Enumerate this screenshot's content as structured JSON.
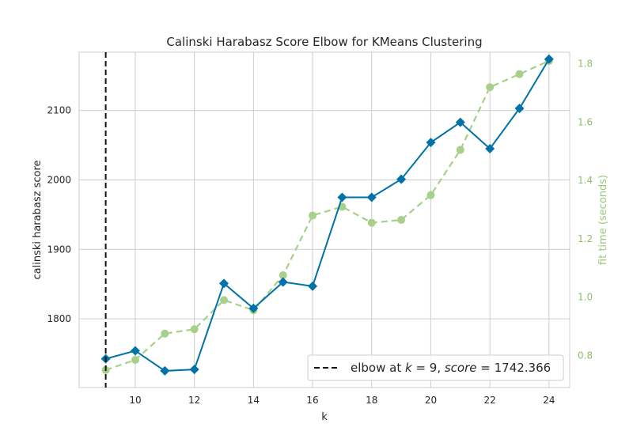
{
  "chart_data": {
    "type": "line",
    "title": "Calinski Harabasz Score Elbow for KMeans Clustering",
    "xlabel": "k",
    "ylabel": "calinski harabasz score",
    "y2label": "fit time (seconds)",
    "xlim": [
      8.1,
      24.7
    ],
    "ylim": [
      1701,
      2184
    ],
    "y2lim": [
      0.69,
      1.84
    ],
    "x_ticks": [
      10,
      12,
      14,
      16,
      18,
      20,
      22,
      24
    ],
    "y_ticks": [
      1800,
      1900,
      2000,
      2100
    ],
    "y2_ticks": [
      0.8,
      1.0,
      1.2,
      1.4,
      1.6,
      1.8
    ],
    "y2_tick_labels": [
      "0.8",
      "1.0",
      "1.2",
      "1.4",
      "1.6",
      "1.8"
    ],
    "grid": true,
    "series": [
      {
        "name": "calinski harabasz score",
        "axis": "left",
        "color": "#0072a8",
        "marker": "diamond",
        "linestyle": "solid",
        "x": [
          9,
          10,
          11,
          12,
          13,
          14,
          15,
          16,
          17,
          18,
          19,
          20,
          21,
          22,
          23,
          24
        ],
        "values": [
          1742.4,
          1754,
          1725,
          1727,
          1851,
          1815,
          1853,
          1847,
          1975,
          1975,
          2001,
          2054,
          2083,
          2045,
          2103,
          2174
        ]
      },
      {
        "name": "fit time (seconds)",
        "axis": "right",
        "color": "#a8d08a",
        "marker": "circle",
        "linestyle": "dashed",
        "x": [
          9,
          10,
          11,
          12,
          13,
          14,
          15,
          16,
          17,
          18,
          19,
          20,
          21,
          22,
          23,
          24
        ],
        "values": [
          0.75,
          0.785,
          0.875,
          0.89,
          0.99,
          0.955,
          1.075,
          1.28,
          1.31,
          1.255,
          1.265,
          1.35,
          1.505,
          1.72,
          1.765,
          1.81
        ]
      }
    ],
    "elbow": {
      "k": 9,
      "score": 1742.366,
      "color": "#111111",
      "legend_label": "elbow at $k = 9, score = 1742.366$",
      "legend_prefix": "elbow at ",
      "legend_k_var": "k",
      "legend_k_eq": " = 9, ",
      "legend_score_var": "score",
      "legend_score_eq": " = 1742.366"
    },
    "legend_position": "lower-right"
  }
}
